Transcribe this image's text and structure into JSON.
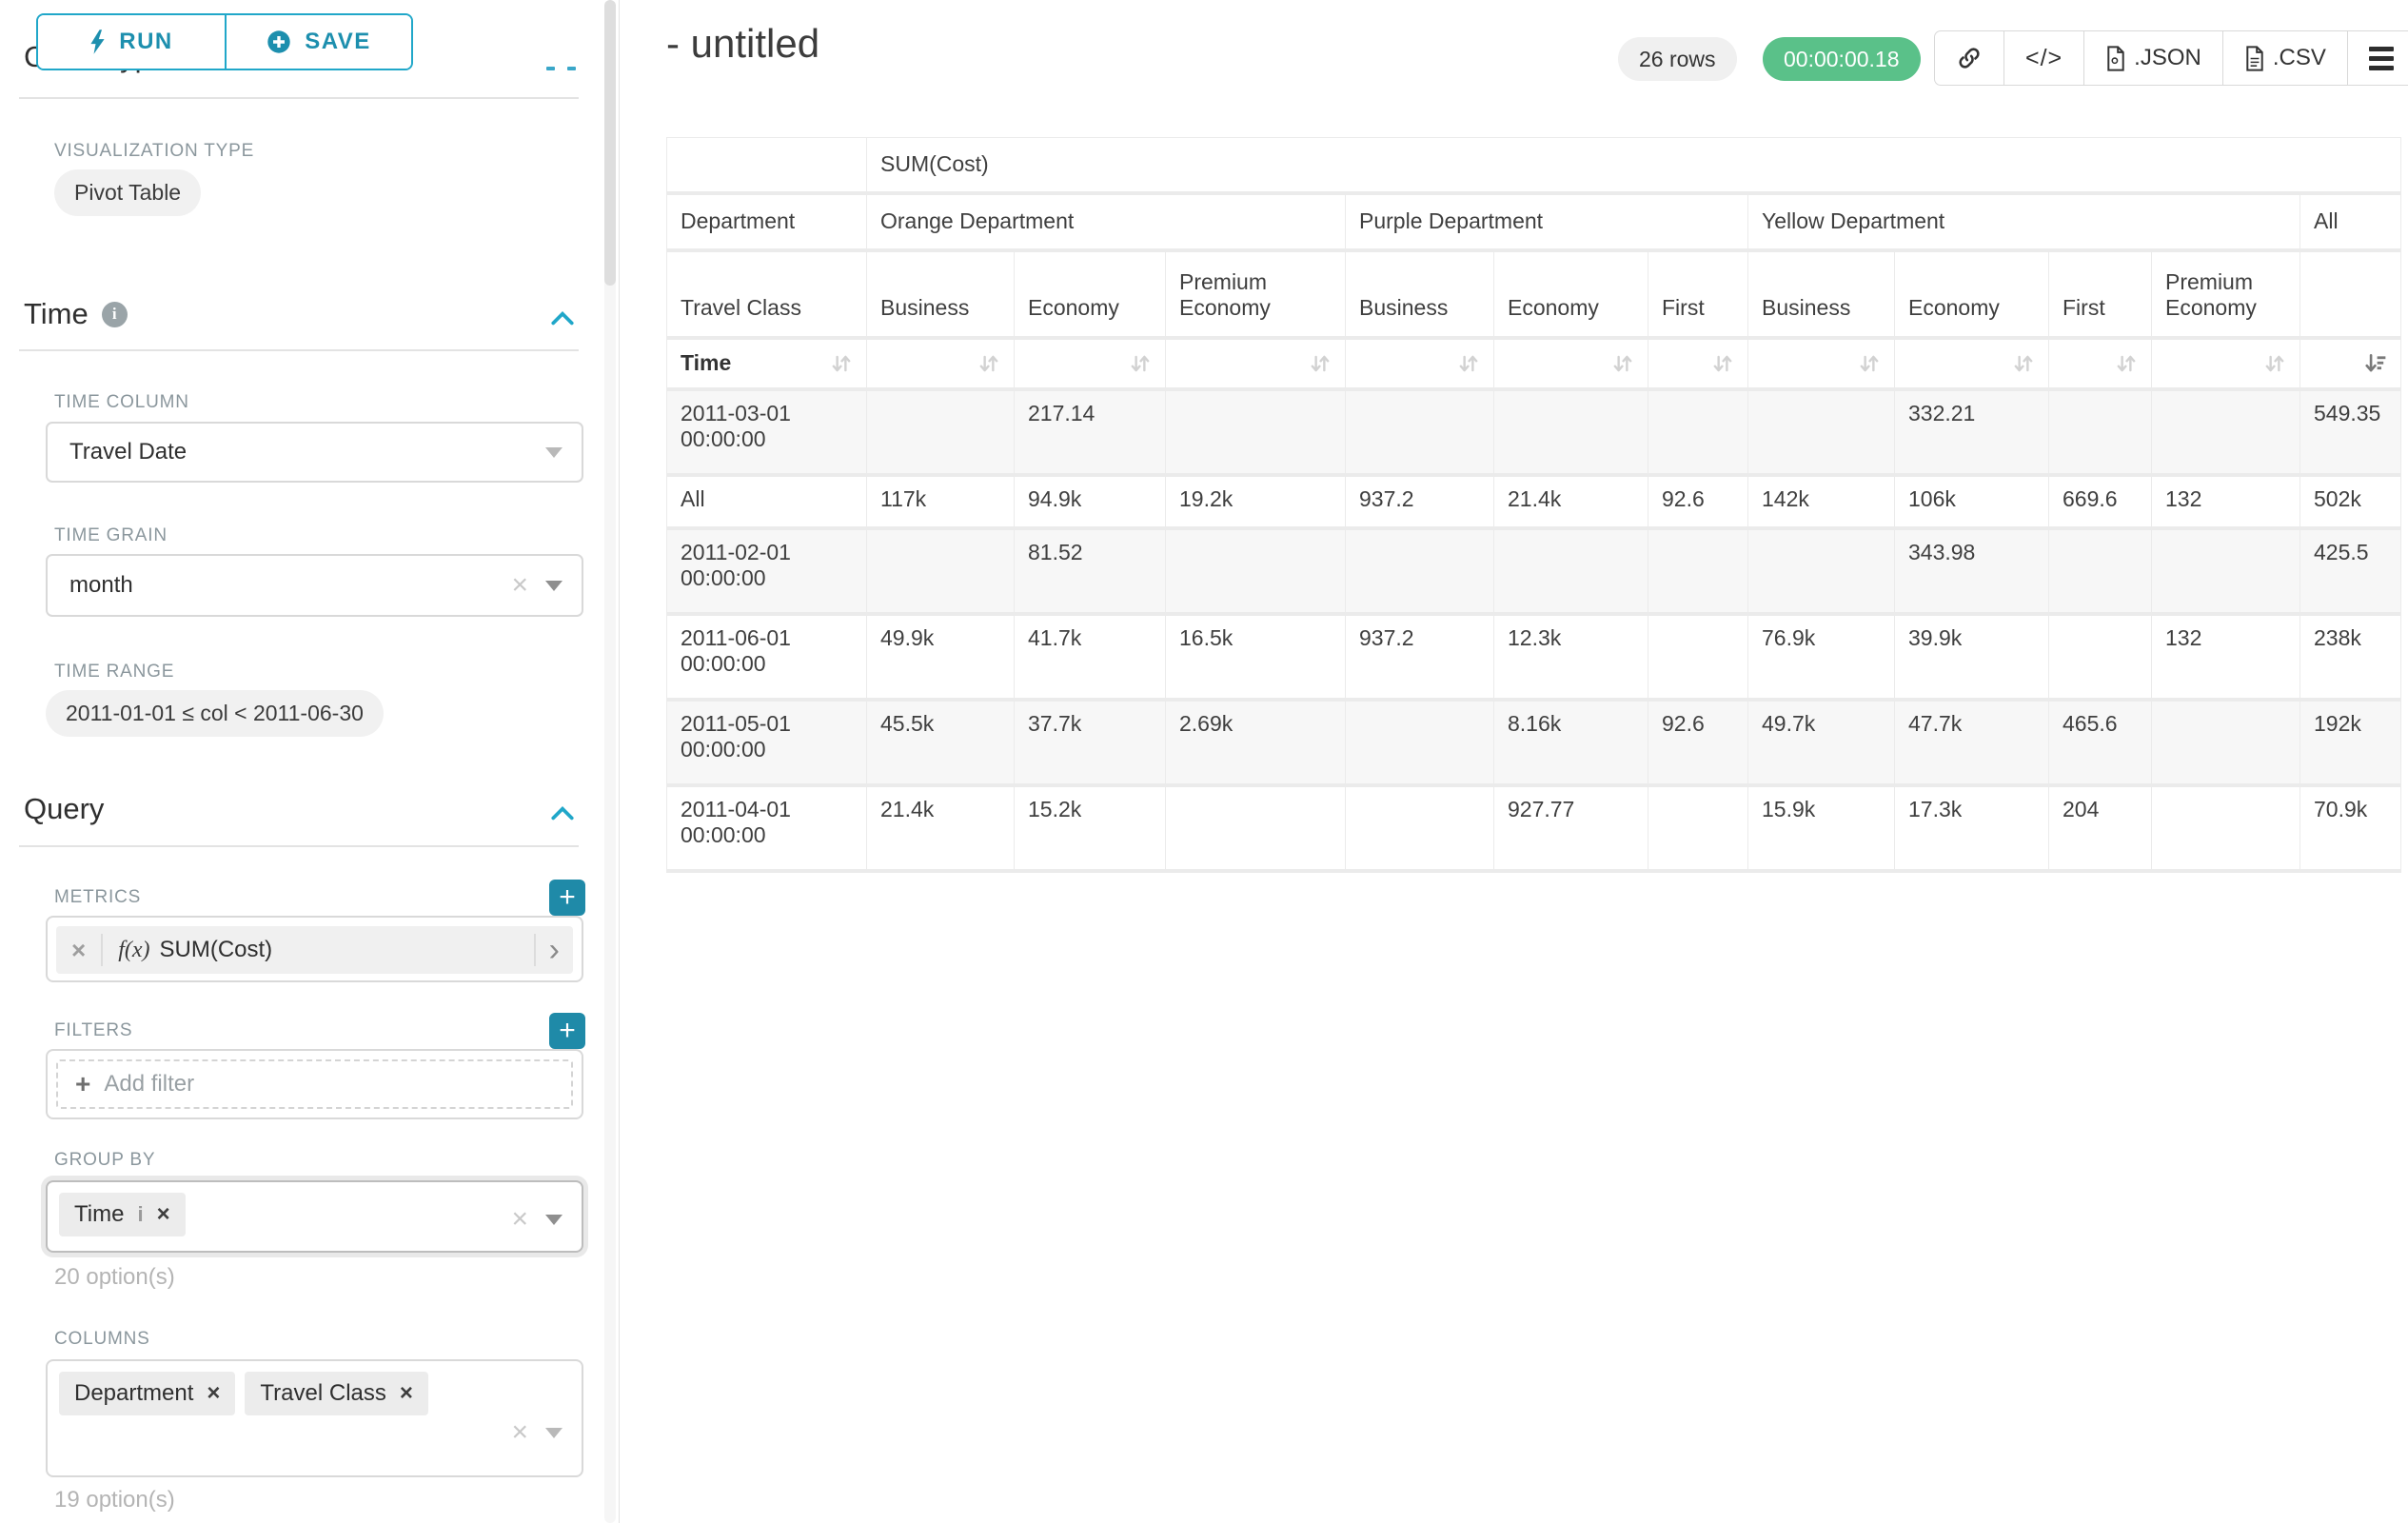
{
  "left_panel": {
    "run_button": "RUN",
    "save_button": "SAVE",
    "chart_type_heading": "Chart Type",
    "visualization_type_label": "VISUALIZATION TYPE",
    "visualization_type_value": "Pivot Table",
    "time_section": {
      "title": "Time",
      "time_column_label": "TIME COLUMN",
      "time_column_value": "Travel Date",
      "time_grain_label": "TIME GRAIN",
      "time_grain_value": "month",
      "time_range_label": "TIME RANGE",
      "time_range_value": "2011-01-01 ≤ col < 2011-06-30"
    },
    "query_section": {
      "title": "Query",
      "metrics_label": "METRICS",
      "metric_prefix": "f(x)",
      "metric_value": "SUM(Cost)",
      "filters_label": "FILTERS",
      "add_filter_label": "Add filter",
      "group_by_label": "GROUP BY",
      "group_by_chips": [
        {
          "label": "Time",
          "info": true
        }
      ],
      "group_by_options_hint": "20 option(s)",
      "columns_label": "COLUMNS",
      "columns_chips": [
        {
          "label": "Department"
        },
        {
          "label": "Travel Class"
        }
      ],
      "columns_options_hint": "19 option(s)"
    }
  },
  "header": {
    "title": "- untitled",
    "row_count_badge": "26 rows",
    "timer_badge": "00:00:00.18",
    "export_json_label": ".JSON",
    "export_csv_label": ".CSV"
  },
  "colors": {
    "accent": "#20a7c9",
    "timer_green": "#5ac189"
  },
  "chart_data": {
    "type": "table",
    "metric_header": "SUM(Cost)",
    "row_dimension": "Time",
    "column_dimensions": [
      "Department",
      "Travel Class"
    ],
    "column_groups": [
      {
        "department": "Orange Department",
        "classes": [
          "Business",
          "Economy",
          "Premium Economy"
        ]
      },
      {
        "department": "Purple Department",
        "classes": [
          "Business",
          "Economy",
          "First"
        ]
      },
      {
        "department": "Yellow Department",
        "classes": [
          "Business",
          "Economy",
          "First",
          "Premium Economy"
        ]
      },
      {
        "department": "All",
        "classes": [
          ""
        ]
      }
    ],
    "rows": [
      {
        "time": "2011-03-01 00:00:00",
        "values": [
          "",
          "217.14",
          "",
          "",
          "",
          "",
          "",
          "332.21",
          "",
          "",
          "549.35"
        ]
      },
      {
        "time": "All",
        "values": [
          "117k",
          "94.9k",
          "19.2k",
          "937.2",
          "21.4k",
          "92.6",
          "142k",
          "106k",
          "669.6",
          "132",
          "502k"
        ]
      },
      {
        "time": "2011-02-01 00:00:00",
        "values": [
          "",
          "81.52",
          "",
          "",
          "",
          "",
          "",
          "343.98",
          "",
          "",
          "425.5"
        ]
      },
      {
        "time": "2011-06-01 00:00:00",
        "values": [
          "49.9k",
          "41.7k",
          "16.5k",
          "937.2",
          "12.3k",
          "",
          "76.9k",
          "39.9k",
          "",
          "132",
          "238k"
        ]
      },
      {
        "time": "2011-05-01 00:00:00",
        "values": [
          "45.5k",
          "37.7k",
          "2.69k",
          "",
          "8.16k",
          "92.6",
          "49.7k",
          "47.7k",
          "465.6",
          "",
          "192k"
        ]
      },
      {
        "time": "2011-04-01 00:00:00",
        "values": [
          "21.4k",
          "15.2k",
          "",
          "",
          "927.77",
          "",
          "15.9k",
          "17.3k",
          "204",
          "",
          "70.9k"
        ]
      }
    ],
    "sorted_column": "All",
    "sort_direction": "desc"
  }
}
